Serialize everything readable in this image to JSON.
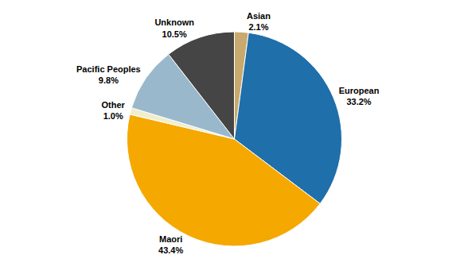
{
  "chart_data": {
    "type": "pie",
    "categories": [
      "Asian",
      "European",
      "Maori",
      "Other",
      "Pacific Peoples",
      "Unknown"
    ],
    "values": [
      2.1,
      33.2,
      43.4,
      1.0,
      9.8,
      10.5
    ],
    "value_labels": [
      "2.1%",
      "33.2%",
      "43.4%",
      "1.0%",
      "9.8%",
      "10.5%"
    ],
    "colors": [
      "#c8a96e",
      "#1f6faa",
      "#f5a800",
      "#f0eecc",
      "#9ab8cc",
      "#454545"
    ],
    "data_labels": true
  }
}
